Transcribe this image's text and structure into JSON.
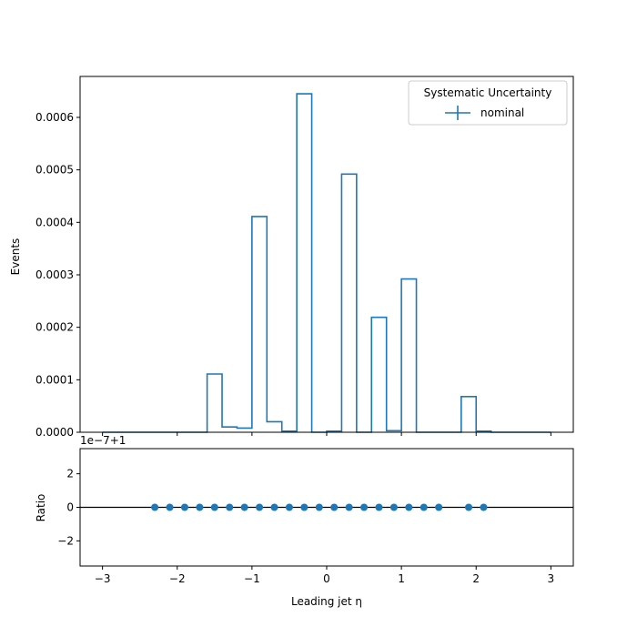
{
  "chart_data": [
    {
      "type": "histogram-step",
      "panel": "main",
      "ylabel": "Events",
      "xlim": [
        -3.3,
        3.3
      ],
      "ylim": [
        0,
        0.000678
      ],
      "yticks": [
        0,
        0.0001,
        0.0002,
        0.0003,
        0.0004,
        0.0005,
        0.0006
      ],
      "ytick_labels": [
        "0.0000",
        "0.0001",
        "0.0002",
        "0.0003",
        "0.0004",
        "0.0005",
        "0.0006"
      ],
      "grid": false,
      "legend": {
        "title": "Systematic Uncertainty",
        "placement": "top-right",
        "entries": [
          "nominal"
        ]
      },
      "series": [
        {
          "name": "nominal",
          "color": "#1f77b4",
          "bin_edges": [
            -3.0,
            -2.8,
            -2.6,
            -2.4,
            -2.2,
            -2.0,
            -1.8,
            -1.6,
            -1.4,
            -1.2,
            -1.0,
            -0.8,
            -0.6,
            -0.4,
            -0.2,
            0.0,
            0.2,
            0.4,
            0.6,
            0.8,
            1.0,
            1.2,
            1.4,
            1.6,
            1.8,
            2.0,
            2.2,
            2.4,
            2.6,
            2.8,
            3.0
          ],
          "values": [
            0,
            0,
            0,
            0,
            0,
            0,
            0,
            0.000111,
            1e-05,
            8e-06,
            0.000411,
            2e-05,
            2e-06,
            0.000645,
            0,
            2e-06,
            0.000492,
            0,
            0.000219,
            3e-06,
            0.000292,
            0,
            0,
            0,
            6.8e-05,
            2e-06,
            0,
            0,
            0,
            0
          ]
        }
      ]
    },
    {
      "type": "scatter",
      "panel": "ratio",
      "xlabel": "Leading jet  η",
      "ylabel": "Ratio",
      "offset_label": "1e−7+1",
      "xlim": [
        -3.3,
        3.3
      ],
      "ylim": [
        -3.5,
        3.5
      ],
      "xticks": [
        -3,
        -2,
        -1,
        0,
        1,
        2,
        3
      ],
      "xtick_labels": [
        "−3",
        "−2",
        "−1",
        "0",
        "1",
        "2",
        "3"
      ],
      "yticks": [
        -2,
        0,
        2
      ],
      "ytick_labels": [
        "−2",
        "0",
        "2"
      ],
      "reference_line": 0,
      "series": [
        {
          "color": "#1f77b4",
          "x": [
            -2.3,
            -2.1,
            -1.9,
            -1.7,
            -1.5,
            -1.3,
            -1.1,
            -0.9,
            -0.7,
            -0.5,
            -0.3,
            -0.1,
            0.1,
            0.3,
            0.5,
            0.7,
            0.9,
            1.1,
            1.3,
            1.5,
            1.9,
            2.1
          ],
          "y": [
            0,
            0,
            0,
            0,
            0,
            0,
            0,
            0,
            0,
            0,
            0,
            0,
            0,
            0,
            0,
            0,
            0,
            0,
            0,
            0,
            0,
            0
          ]
        }
      ]
    }
  ]
}
